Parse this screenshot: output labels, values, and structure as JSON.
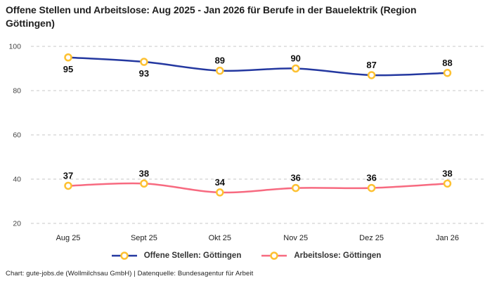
{
  "title": "Offene Stellen und Arbeitslose: Aug 2025 - Jan 2026 für Berufe in der Bauelektrik (Region Göttingen)",
  "footer": {
    "credit": "Chart: gute-jobs.de (Wollmilchsau GmbH) | Datenquelle: Bundesagentur für Arbeit"
  },
  "chart_data": {
    "type": "line",
    "title": "Offene Stellen und Arbeitslose: Aug 2025 - Jan 2026 für Berufe in der Bauelektrik (Region Göttingen)",
    "categories": [
      "Aug 25",
      "Sept 25",
      "Okt 25",
      "Nov 25",
      "Dez 25",
      "Jan 26"
    ],
    "series": [
      {
        "name": "Offene Stellen: Göttingen",
        "values": [
          95,
          93,
          89,
          90,
          87,
          88
        ],
        "color": "#2438a0",
        "label_positions": [
          "below",
          "below",
          "above",
          "above",
          "above",
          "above"
        ]
      },
      {
        "name": "Arbeitslose: Göttingen",
        "values": [
          37,
          38,
          34,
          36,
          36,
          38
        ],
        "color": "#f76a80",
        "label_positions": [
          "above",
          "above",
          "above",
          "above",
          "above",
          "above"
        ]
      }
    ],
    "y_axis": {
      "ticks": [
        100,
        80,
        60,
        40,
        20
      ],
      "range": [
        20,
        100
      ]
    },
    "x_axis": {
      "label": ""
    },
    "grid": "horizontal-dashed",
    "gridline_color": "#c7c7c7",
    "legend_position": "bottom",
    "marker": {
      "shape": "circle",
      "fill": "#ffffff",
      "stroke": "#fdc132"
    }
  }
}
